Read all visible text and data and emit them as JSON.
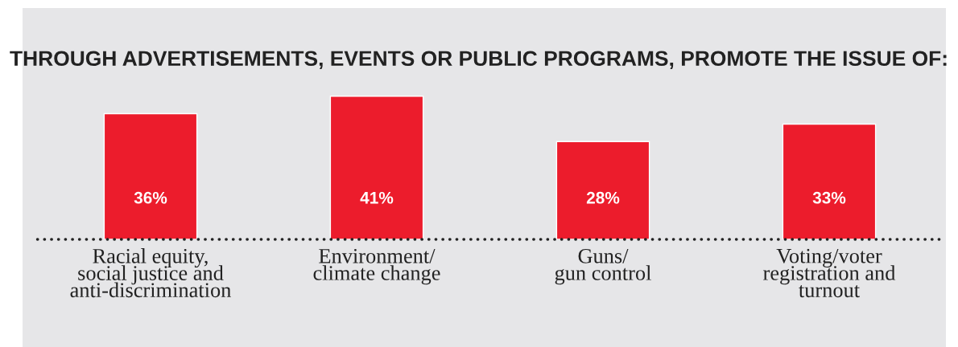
{
  "chart_data": {
    "type": "bar",
    "title": "THROUGH ADVERTISEMENTS, EVENTS OR PUBLIC PROGRAMS, PROMOTE THE ISSUE OF:",
    "categories": [
      "Racial equity,\nsocial justice and\nanti-discrimination",
      "Environment/\nclimate change",
      "Guns/\ngun control",
      "Voting/voter\nregistration and\nturnout"
    ],
    "values": [
      36,
      41,
      28,
      33
    ],
    "color": "#ec1c2c",
    "value_labels": [
      "36%",
      "41%",
      "28%",
      "33%"
    ]
  }
}
